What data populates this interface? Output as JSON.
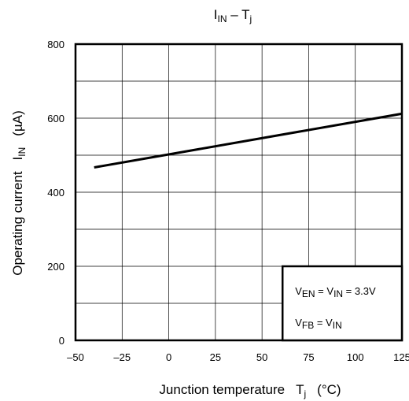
{
  "chart_data": {
    "type": "line",
    "title": {
      "main": "I",
      "sub": "IN",
      "sep": " – T",
      "sub2": "j"
    },
    "xlabel": {
      "text": "Junction temperature",
      "sym": "T",
      "sub": "j",
      "unit": "(°C)"
    },
    "ylabel": {
      "text": "Operating current",
      "sym": "I",
      "sub": "IN",
      "unit": "(µA)"
    },
    "xlim": [
      -50,
      125
    ],
    "ylim": [
      0,
      800
    ],
    "xticks": [
      "–50",
      "–25",
      "0",
      "25",
      "50",
      "75",
      "100",
      "125"
    ],
    "xtick_values": [
      -50,
      -25,
      0,
      25,
      50,
      75,
      100,
      125
    ],
    "yticks": [
      "0",
      "200",
      "400",
      "600",
      "800"
    ],
    "ytick_values": [
      0,
      200,
      400,
      600,
      800
    ],
    "grid": true,
    "grid_y_values": [
      100,
      200,
      300,
      400,
      500,
      600,
      700
    ],
    "series": [
      {
        "x": [
          -40,
          125
        ],
        "y": [
          467,
          612
        ],
        "color": "#000000"
      }
    ],
    "annotation": {
      "line1": {
        "a": "V",
        "a_sub": "EN",
        "mid": " = V",
        "b_sub": "IN",
        "tail": " = 3.3V"
      },
      "line2": {
        "a": "V",
        "a_sub": "FB",
        "mid": " = V",
        "b_sub": "IN"
      },
      "x_range": [
        61,
        125
      ],
      "y_range": [
        0,
        200
      ]
    }
  }
}
